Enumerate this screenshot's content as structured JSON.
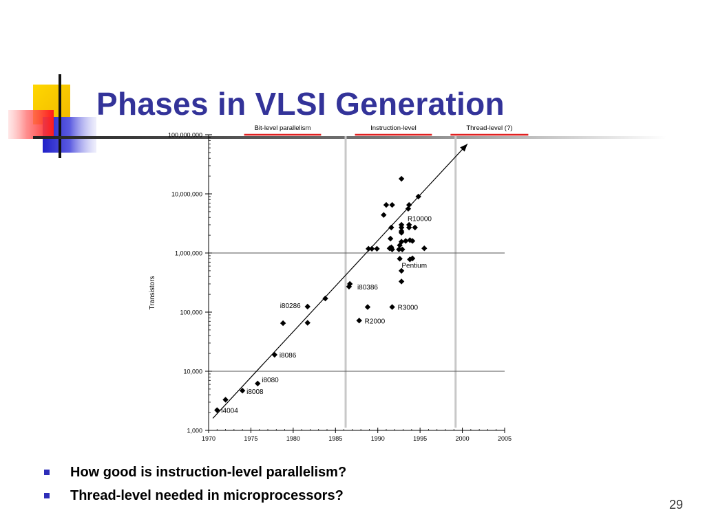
{
  "slide": {
    "title": "Phases in VLSI Generation",
    "page_number": "29",
    "bullets": [
      "How good is instruction-level parallelism?",
      "Thread-level needed in microprocessors?"
    ],
    "colors": {
      "title": "#333399",
      "bullet_marker": "#2d2db8",
      "phase_underline": "#e02020",
      "phase_divider": "#c8c8c8",
      "deco_yellow": "#f7c800",
      "deco_red": "#ff3030",
      "deco_blue": "#2828d0"
    }
  },
  "chart_data": {
    "type": "scatter",
    "title": "",
    "xlabel": "",
    "ylabel": "Transistors",
    "xlim": [
      1970,
      2005
    ],
    "ylim": [
      1000,
      100000000
    ],
    "yscale": "log",
    "xticks": [
      1970,
      1975,
      1980,
      1985,
      1990,
      1995,
      2000,
      2005
    ],
    "yticks": [
      {
        "value": 1000,
        "label": "1,000"
      },
      {
        "value": 10000,
        "label": "10,000"
      },
      {
        "value": 100000,
        "label": "100,000"
      },
      {
        "value": 1000000,
        "label": "1,000,000"
      },
      {
        "value": 10000000,
        "label": "10,000,000"
      },
      {
        "value": 100000000,
        "label": "100,000,000"
      }
    ],
    "grid_lines_y": [
      10000,
      1000000
    ],
    "phases": [
      {
        "label": "Bit-level parallelism",
        "x_start": 1970.0,
        "x_end": 1986.2,
        "underline_start": 1974.2,
        "underline_end": 1983.3
      },
      {
        "label": "Instruction-level",
        "x_start": 1986.2,
        "x_end": 1999.2,
        "underline_start": 1987.3,
        "underline_end": 1996.4
      },
      {
        "label": "Thread-level (?)",
        "x_start": 1999.2,
        "x_end": 2005.0,
        "underline_start": 1998.6,
        "underline_end": 2007.8
      }
    ],
    "dividers": [
      1986.2,
      1999.2
    ],
    "trend_line": {
      "from": [
        1970.5,
        1600
      ],
      "to": [
        2000.6,
        70000000
      ]
    },
    "points": [
      {
        "x": 1971.0,
        "y": 2200,
        "label": "i4004"
      },
      {
        "x": 1972.0,
        "y": 3300,
        "label": ""
      },
      {
        "x": 1974.0,
        "y": 4700,
        "label": "i8008"
      },
      {
        "x": 1975.8,
        "y": 6200,
        "label": "i8080"
      },
      {
        "x": 1977.8,
        "y": 19000,
        "label": "i8086"
      },
      {
        "x": 1978.8,
        "y": 65000,
        "label": ""
      },
      {
        "x": 1981.7,
        "y": 66000,
        "label": ""
      },
      {
        "x": 1981.7,
        "y": 124000,
        "label": "i80286"
      },
      {
        "x": 1983.8,
        "y": 170000,
        "label": ""
      },
      {
        "x": 1986.6,
        "y": 270000,
        "label": "i80386"
      },
      {
        "x": 1986.7,
        "y": 300000,
        "label": ""
      },
      {
        "x": 1987.8,
        "y": 72000,
        "label": "R2000"
      },
      {
        "x": 1988.8,
        "y": 122000,
        "label": ""
      },
      {
        "x": 1991.7,
        "y": 122000,
        "label": "R3000"
      },
      {
        "x": 1988.9,
        "y": 1180000,
        "label": ""
      },
      {
        "x": 1989.3,
        "y": 1180000,
        "label": ""
      },
      {
        "x": 1989.9,
        "y": 1180000,
        "label": ""
      },
      {
        "x": 1991.7,
        "y": 1150000,
        "label": ""
      },
      {
        "x": 1991.6,
        "y": 1250000,
        "label": ""
      },
      {
        "x": 1991.4,
        "y": 1200000,
        "label": ""
      },
      {
        "x": 1992.5,
        "y": 1150000,
        "label": ""
      },
      {
        "x": 1992.9,
        "y": 1150000,
        "label": ""
      },
      {
        "x": 1992.6,
        "y": 1350000,
        "label": ""
      },
      {
        "x": 1992.8,
        "y": 1550000,
        "label": ""
      },
      {
        "x": 1993.3,
        "y": 1600000,
        "label": ""
      },
      {
        "x": 1993.8,
        "y": 1650000,
        "label": ""
      },
      {
        "x": 1994.1,
        "y": 1600000,
        "label": ""
      },
      {
        "x": 1991.5,
        "y": 1750000,
        "label": ""
      },
      {
        "x": 1992.8,
        "y": 2200000,
        "label": ""
      },
      {
        "x": 1992.8,
        "y": 2350000,
        "label": ""
      },
      {
        "x": 1991.6,
        "y": 2700000,
        "label": ""
      },
      {
        "x": 1992.8,
        "y": 2700000,
        "label": ""
      },
      {
        "x": 1992.8,
        "y": 3000000,
        "label": ""
      },
      {
        "x": 1993.7,
        "y": 2700000,
        "label": ""
      },
      {
        "x": 1993.7,
        "y": 3000000,
        "label": ""
      },
      {
        "x": 1994.4,
        "y": 2700000,
        "label": ""
      },
      {
        "x": 1995.5,
        "y": 1200000,
        "label": ""
      },
      {
        "x": 1992.6,
        "y": 800000,
        "label": ""
      },
      {
        "x": 1993.8,
        "y": 780000,
        "label": "Pentium"
      },
      {
        "x": 1994.1,
        "y": 810000,
        "label": ""
      },
      {
        "x": 1992.8,
        "y": 500000,
        "label": ""
      },
      {
        "x": 1992.8,
        "y": 330000,
        "label": ""
      },
      {
        "x": 1990.7,
        "y": 4400000,
        "label": ""
      },
      {
        "x": 1991.0,
        "y": 6500000,
        "label": ""
      },
      {
        "x": 1991.7,
        "y": 6500000,
        "label": ""
      },
      {
        "x": 1993.7,
        "y": 6500000,
        "label": ""
      },
      {
        "x": 1993.6,
        "y": 5600000,
        "label": "R10000"
      },
      {
        "x": 1994.8,
        "y": 9000000,
        "label": ""
      },
      {
        "x": 1992.8,
        "y": 18000000,
        "label": ""
      }
    ]
  }
}
